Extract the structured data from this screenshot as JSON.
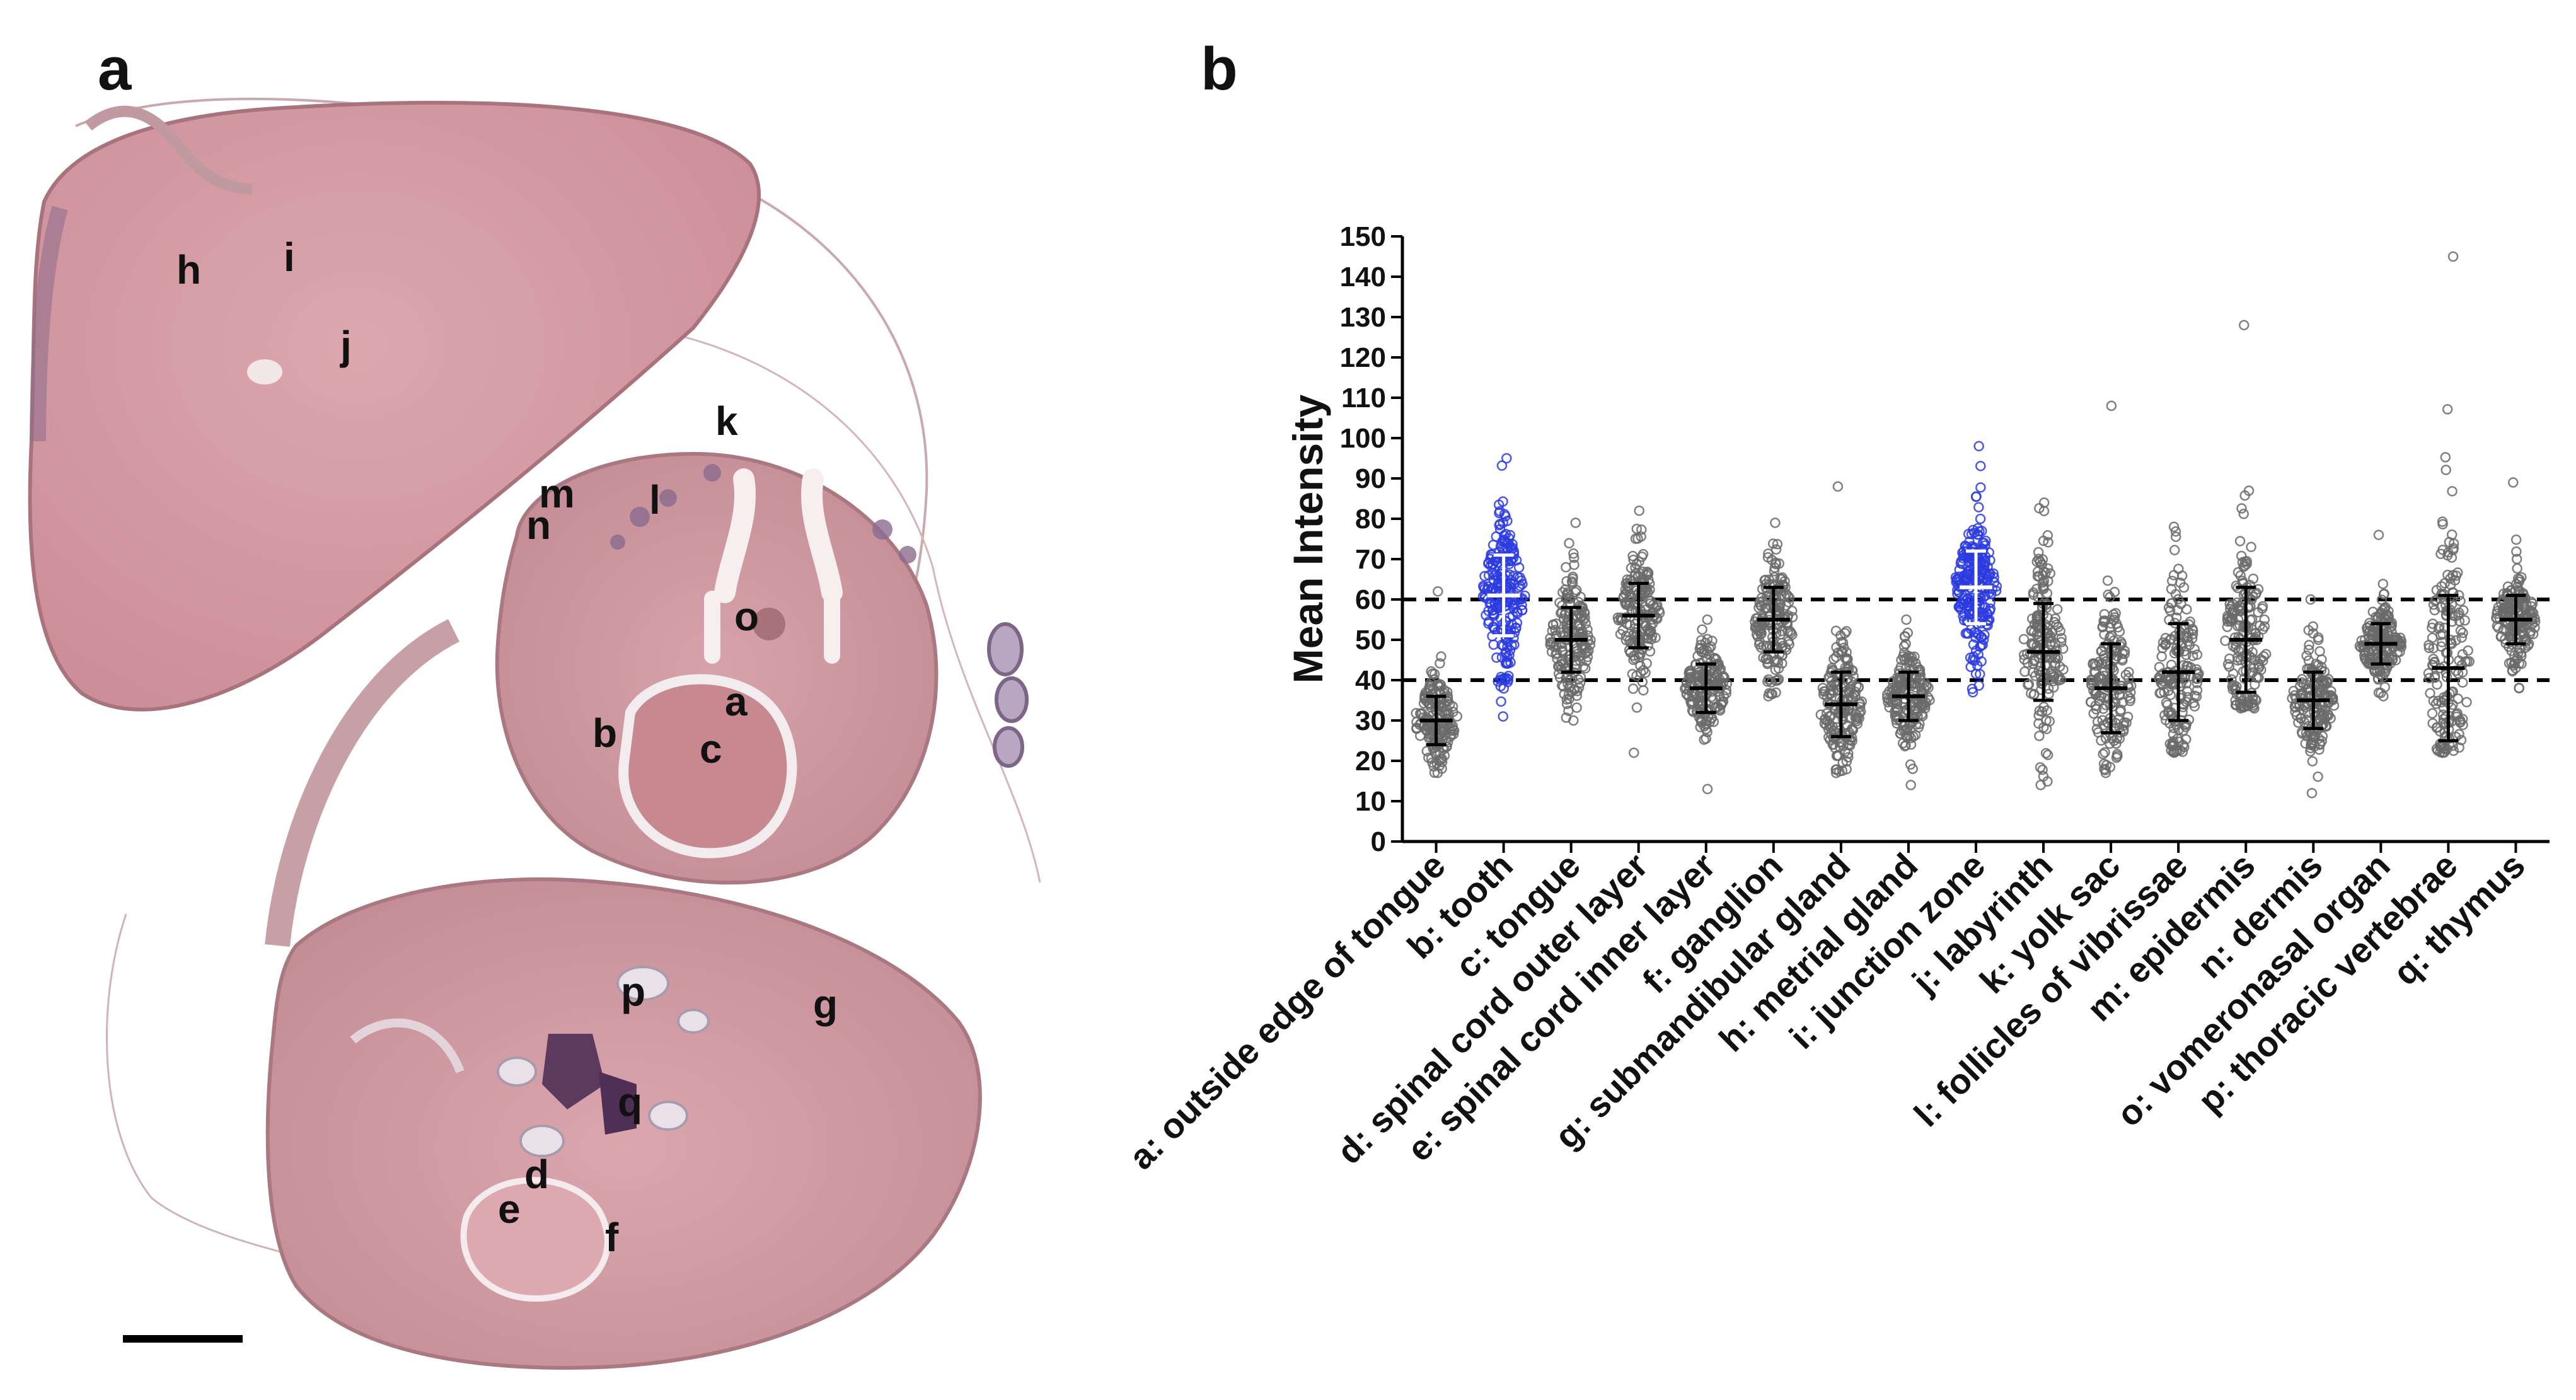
{
  "panels": {
    "a_letter": "a",
    "b_letter": "b"
  },
  "tissue": {
    "region_labels": [
      "h",
      "i",
      "j",
      "k",
      "m",
      "n",
      "l",
      "o",
      "a",
      "b",
      "c",
      "p",
      "g",
      "q",
      "d",
      "e",
      "f"
    ],
    "colors": {
      "stain_pink": "#d9a0a8",
      "stain_dark": "#a85c6a",
      "stain_purple": "#6b3f6e",
      "outline": "#b98a92",
      "scale_bar": "#000000"
    }
  },
  "chart_data": {
    "type": "scatter",
    "ylabel": "Mean Intensity",
    "xlabel": "",
    "ylim": [
      0,
      150
    ],
    "yticks": [
      0,
      10,
      20,
      30,
      40,
      50,
      60,
      70,
      80,
      90,
      100,
      110,
      120,
      130,
      140,
      150
    ],
    "reference_lines": [
      40,
      60
    ],
    "categories": [
      "a: outside edge of tongue",
      "b: tooth",
      "c: tongue",
      "d: spinal cord outer layer",
      "e: spinal cord inner layer",
      "f: ganglion",
      "g: submandibular gland",
      "h: metrial gland",
      "i: junction zone",
      "j: labyrinth",
      "k: yolk sac",
      "l: follicles of vibrissae",
      "m: epidermis",
      "n: dermis",
      "o: vomeronasal organ",
      "p: thoracic vertebrae",
      "q: thymus"
    ],
    "means": [
      30,
      61,
      50,
      56,
      38,
      55,
      34,
      36,
      63,
      47,
      38,
      42,
      50,
      35,
      49,
      43,
      55
    ],
    "sd": [
      6,
      10,
      8,
      8,
      6,
      8,
      8,
      6,
      9,
      12,
      11,
      12,
      13,
      7,
      5,
      18,
      6
    ],
    "ranges": [
      [
        17,
        62
      ],
      [
        31,
        95
      ],
      [
        30,
        79
      ],
      [
        22,
        82
      ],
      [
        13,
        55
      ],
      [
        36,
        79
      ],
      [
        17,
        88
      ],
      [
        14,
        55
      ],
      [
        37,
        98
      ],
      [
        14,
        84
      ],
      [
        17,
        108
      ],
      [
        22,
        78
      ],
      [
        33,
        128
      ],
      [
        12,
        60
      ],
      [
        36,
        76
      ],
      [
        22,
        145
      ],
      [
        38,
        89
      ]
    ],
    "highlighted": [
      "b: tooth",
      "i: junction zone"
    ],
    "colors": {
      "default_points": "#6a6a6a",
      "highlight_points": "#2b3be0",
      "default_error_bar": "#000000",
      "highlight_error_bar": "#ffffff",
      "axis": "#000000"
    },
    "grid": false,
    "legend": "none"
  }
}
